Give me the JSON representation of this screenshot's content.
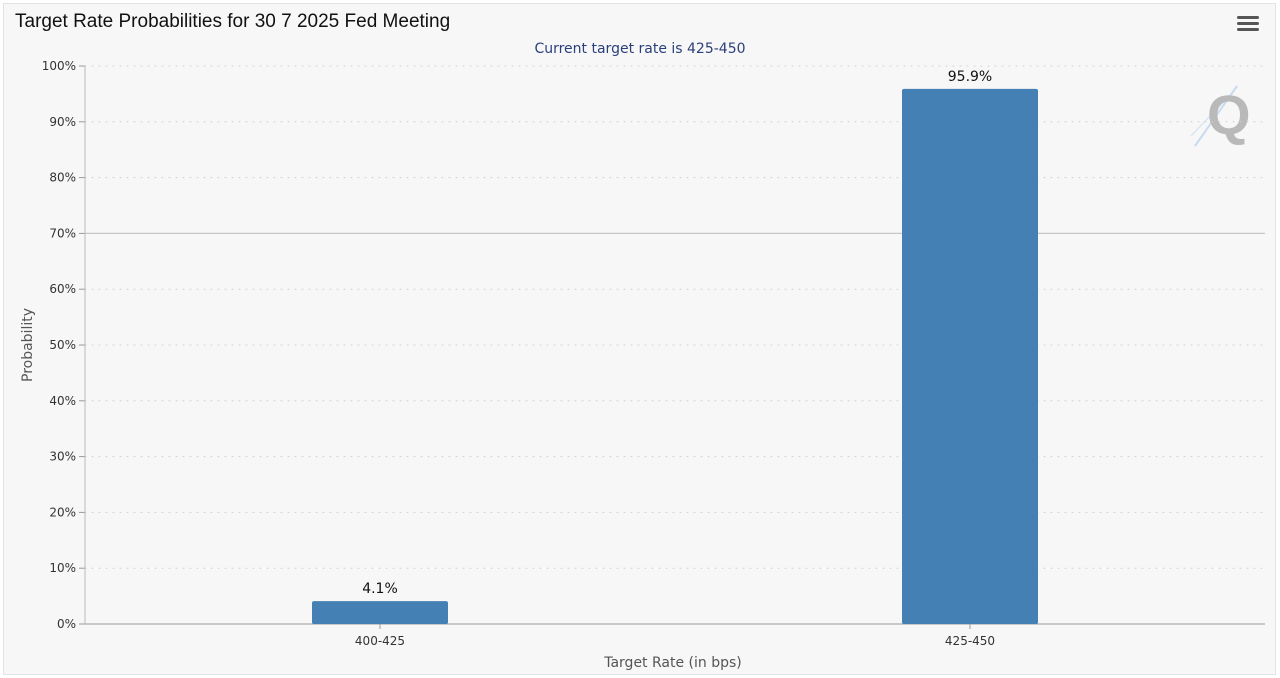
{
  "header": {
    "title": "Target Rate Probabilities for 30 7 2025 Fed Meeting",
    "menu_icon": "hamburger-menu-icon"
  },
  "watermark": {
    "letter": "Q"
  },
  "chart_data": {
    "type": "bar",
    "title": "Target Rate Probabilities for 30 7 2025 Fed Meeting",
    "subtitle": "Current target rate is 425-450",
    "xlabel": "Target Rate (in bps)",
    "ylabel": "Probability",
    "categories": [
      "400-425",
      "425-450"
    ],
    "values": [
      4.1,
      95.9
    ],
    "value_labels": [
      "4.1%",
      "95.9%"
    ],
    "ylim": [
      0,
      100
    ],
    "yticks": [
      0,
      10,
      20,
      30,
      40,
      50,
      60,
      70,
      80,
      90,
      100
    ],
    "ytick_labels": [
      "0%",
      "10%",
      "20%",
      "30%",
      "40%",
      "50%",
      "60%",
      "70%",
      "80%",
      "90%",
      "100%"
    ],
    "grid": true,
    "legend": "none",
    "bar_color": "#4480b4",
    "reference_line": 70
  }
}
